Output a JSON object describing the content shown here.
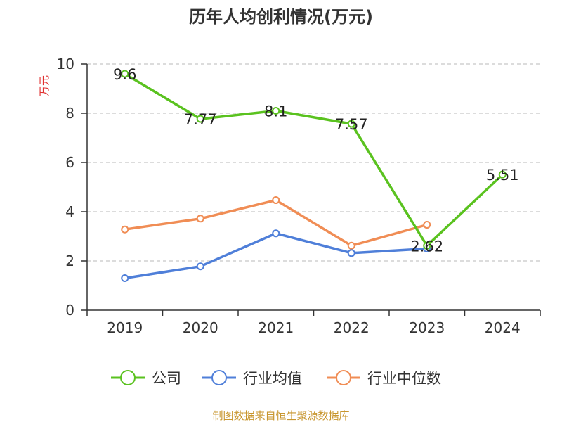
{
  "chart_data": {
    "type": "line",
    "title": "历年人均创利情况(万元)",
    "y_unit": "万元",
    "categories": [
      "2019",
      "2020",
      "2021",
      "2022",
      "2023",
      "2024"
    ],
    "ylim": [
      0,
      10
    ],
    "y_ticks": [
      0,
      2,
      4,
      6,
      8,
      10
    ],
    "grid": true,
    "legend_position": "bottom",
    "series": [
      {
        "name": "公司",
        "color": "#5ac21f",
        "values": [
          9.6,
          7.77,
          8.1,
          7.57,
          2.62,
          5.51
        ],
        "labels": [
          "9.6",
          "7.77",
          "8.1",
          "7.57",
          "2.62",
          "5.51"
        ]
      },
      {
        "name": "行业均值",
        "color": "#4f7fd9",
        "values": [
          1.3,
          1.78,
          3.12,
          2.32,
          2.5,
          null
        ]
      },
      {
        "name": "行业中位数",
        "color": "#f08d55",
        "values": [
          3.28,
          3.72,
          4.47,
          2.62,
          3.47,
          null
        ]
      }
    ]
  },
  "footer": {
    "source": "制图数据来自恒生聚源数据库",
    "source_color": "#c8962e"
  },
  "colors": {
    "axis": "#333333",
    "grid": "#c8c8c8",
    "unit": "#e03030"
  }
}
